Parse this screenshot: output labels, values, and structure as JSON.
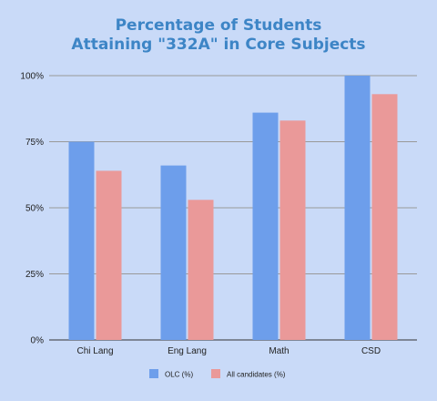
{
  "chart_data": {
    "type": "bar",
    "title_lines": [
      "Percentage of Students",
      "Attaining \"332A\" in Core Subjects"
    ],
    "categories": [
      "Chi Lang",
      "Eng Lang",
      "Math",
      "CSD"
    ],
    "series": [
      {
        "name": "OLC (%)",
        "values": [
          75,
          66,
          86,
          100
        ],
        "color": "#6d9eeb"
      },
      {
        "name": "All candidates (%)",
        "values": [
          64,
          53,
          83,
          93
        ],
        "color": "#ea9999"
      }
    ],
    "y_ticks": [
      0,
      25,
      50,
      75,
      100
    ],
    "y_tick_labels": [
      "0%",
      "25%",
      "50%",
      "75%",
      "100%"
    ],
    "ylim": [
      0,
      100
    ],
    "grid": true,
    "legend_position": "bottom"
  },
  "colors": {
    "background": "#c9daf8",
    "title": "#3d85c6",
    "grid": "#999999"
  }
}
